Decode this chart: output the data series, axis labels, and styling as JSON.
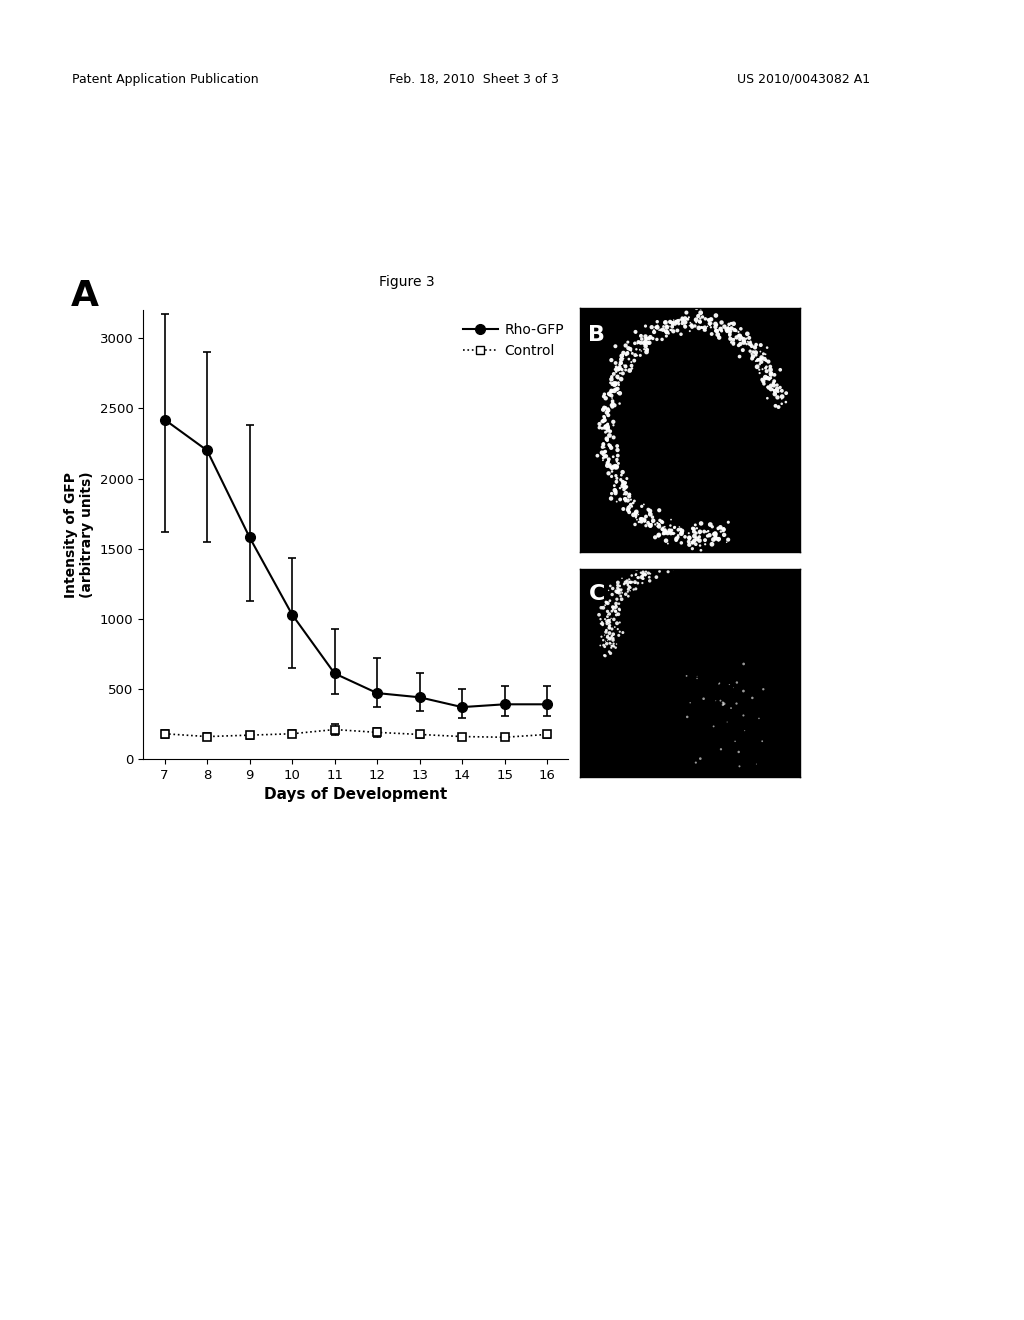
{
  "figure_label": "Figure 3",
  "panel_a_label": "A",
  "panel_b_label": "B",
  "panel_c_label": "C",
  "header_left": "Patent Application Publication",
  "header_center": "Feb. 18, 2010  Sheet 3 of 3",
  "header_right": "US 2010/0043082 A1",
  "rho_gfp_x": [
    7,
    8,
    9,
    10,
    11,
    12,
    13,
    14,
    15,
    16
  ],
  "rho_gfp_y": [
    2420,
    2200,
    1580,
    1030,
    610,
    470,
    440,
    370,
    390,
    390
  ],
  "rho_gfp_yerr_upper": [
    750,
    700,
    800,
    400,
    320,
    250,
    170,
    130,
    130,
    130
  ],
  "rho_gfp_yerr_lower": [
    800,
    650,
    450,
    380,
    150,
    100,
    100,
    80,
    80,
    80
  ],
  "control_x": [
    7,
    8,
    9,
    10,
    11,
    12,
    13,
    14,
    15,
    16
  ],
  "control_y": [
    180,
    160,
    170,
    180,
    210,
    190,
    175,
    160,
    155,
    175
  ],
  "control_yerr": [
    30,
    25,
    25,
    25,
    40,
    30,
    25,
    20,
    20,
    25
  ],
  "xlabel": "Days of Development",
  "ylabel": "Intensity of GFP\n(arbitrary units)",
  "ylim": [
    0,
    3200
  ],
  "yticks": [
    0,
    500,
    1000,
    1500,
    2000,
    2500,
    3000
  ],
  "xlim": [
    6.5,
    16.5
  ],
  "xticks": [
    7,
    8,
    9,
    10,
    11,
    12,
    13,
    14,
    15,
    16
  ],
  "legend_rho": "Rho-GFP",
  "legend_control": "Control",
  "bg_color": "#ffffff",
  "line_color": "#000000",
  "image_b_bg": "#000000",
  "image_c_bg": "#000000"
}
